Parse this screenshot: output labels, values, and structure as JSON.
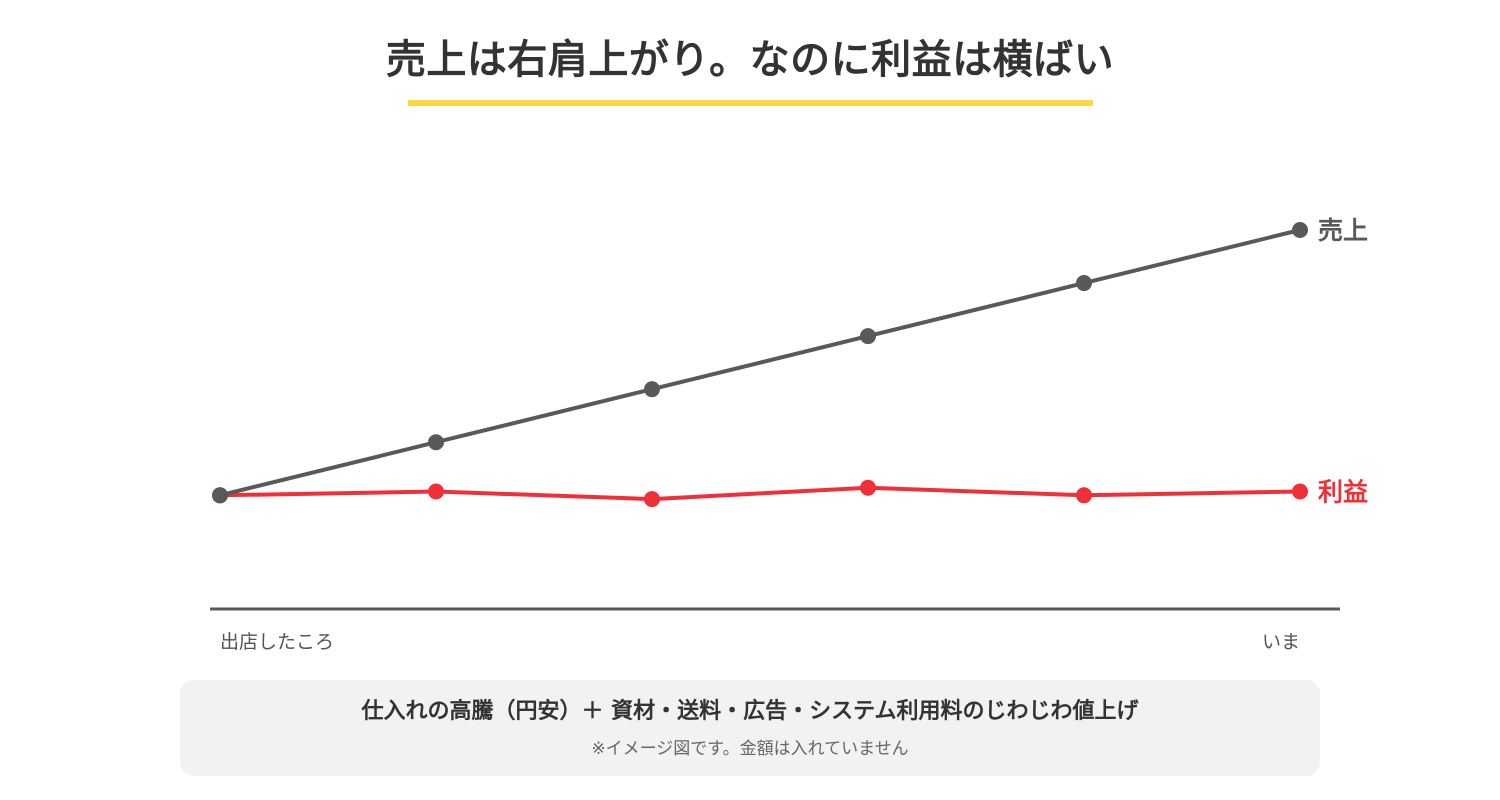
{
  "chart_data": {
    "type": "line",
    "title": "売上は右肩上がり。なのに利益は横ばい",
    "x_start_label": "出店したころ",
    "x_end_label": "いま",
    "x": [
      0,
      1,
      2,
      3,
      4,
      5
    ],
    "ylim": [
      0,
      100
    ],
    "grid": false,
    "legend": "direct labels at line ends",
    "series": [
      {
        "name": "売上",
        "color": "#595959",
        "values": [
          30,
          44,
          58,
          72,
          86,
          100
        ]
      },
      {
        "name": "利益",
        "color": "#f03038",
        "values": [
          30,
          31,
          29,
          32,
          30,
          31
        ]
      }
    ]
  },
  "colors": {
    "accent_underline": "#fcd840",
    "axis": "#595959",
    "note_background": "#f2f2f2"
  },
  "note": {
    "main": "仕入れの高騰（円安）＋ 資材・送料・広告・システム利用料のじわじわ値上げ",
    "sub": "※イメージ図です。金額は入れていません"
  }
}
